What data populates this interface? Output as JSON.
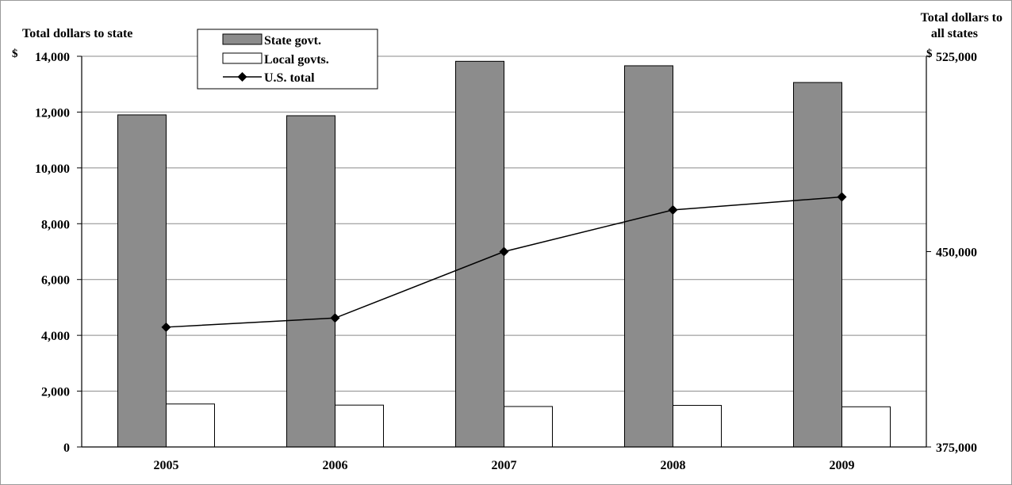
{
  "chart_data": {
    "type": "bar",
    "categories": [
      "2005",
      "2006",
      "2007",
      "2008",
      "2009"
    ],
    "series": [
      {
        "name": "State govt.",
        "type": "bar",
        "axis": "left",
        "color": "#8c8c8c",
        "values": [
          11900,
          11870,
          13820,
          13660,
          13060
        ]
      },
      {
        "name": "Local govts.",
        "type": "bar",
        "axis": "left",
        "color": "#ffffff",
        "values": [
          1540,
          1500,
          1450,
          1490,
          1440
        ]
      },
      {
        "name": "U.S. total",
        "type": "line",
        "axis": "right",
        "color": "#000000",
        "values": [
          421000,
          424500,
          450000,
          466000,
          471000
        ]
      }
    ],
    "y_left": {
      "label": "Total dollars to state",
      "currency": "$",
      "ylim": [
        0,
        14000
      ],
      "ticks": [
        "0",
        "2,000",
        "4,000",
        "6,000",
        "8,000",
        "10,000",
        "12,000",
        "14,000"
      ]
    },
    "y_right": {
      "label_line1": "Total dollars to",
      "label_line2": "all states",
      "currency": "$",
      "ylim": [
        375000,
        525000
      ],
      "ticks": [
        "375,000",
        "450,000",
        "525,000"
      ]
    },
    "grid": true,
    "legend_position": "top-left"
  }
}
